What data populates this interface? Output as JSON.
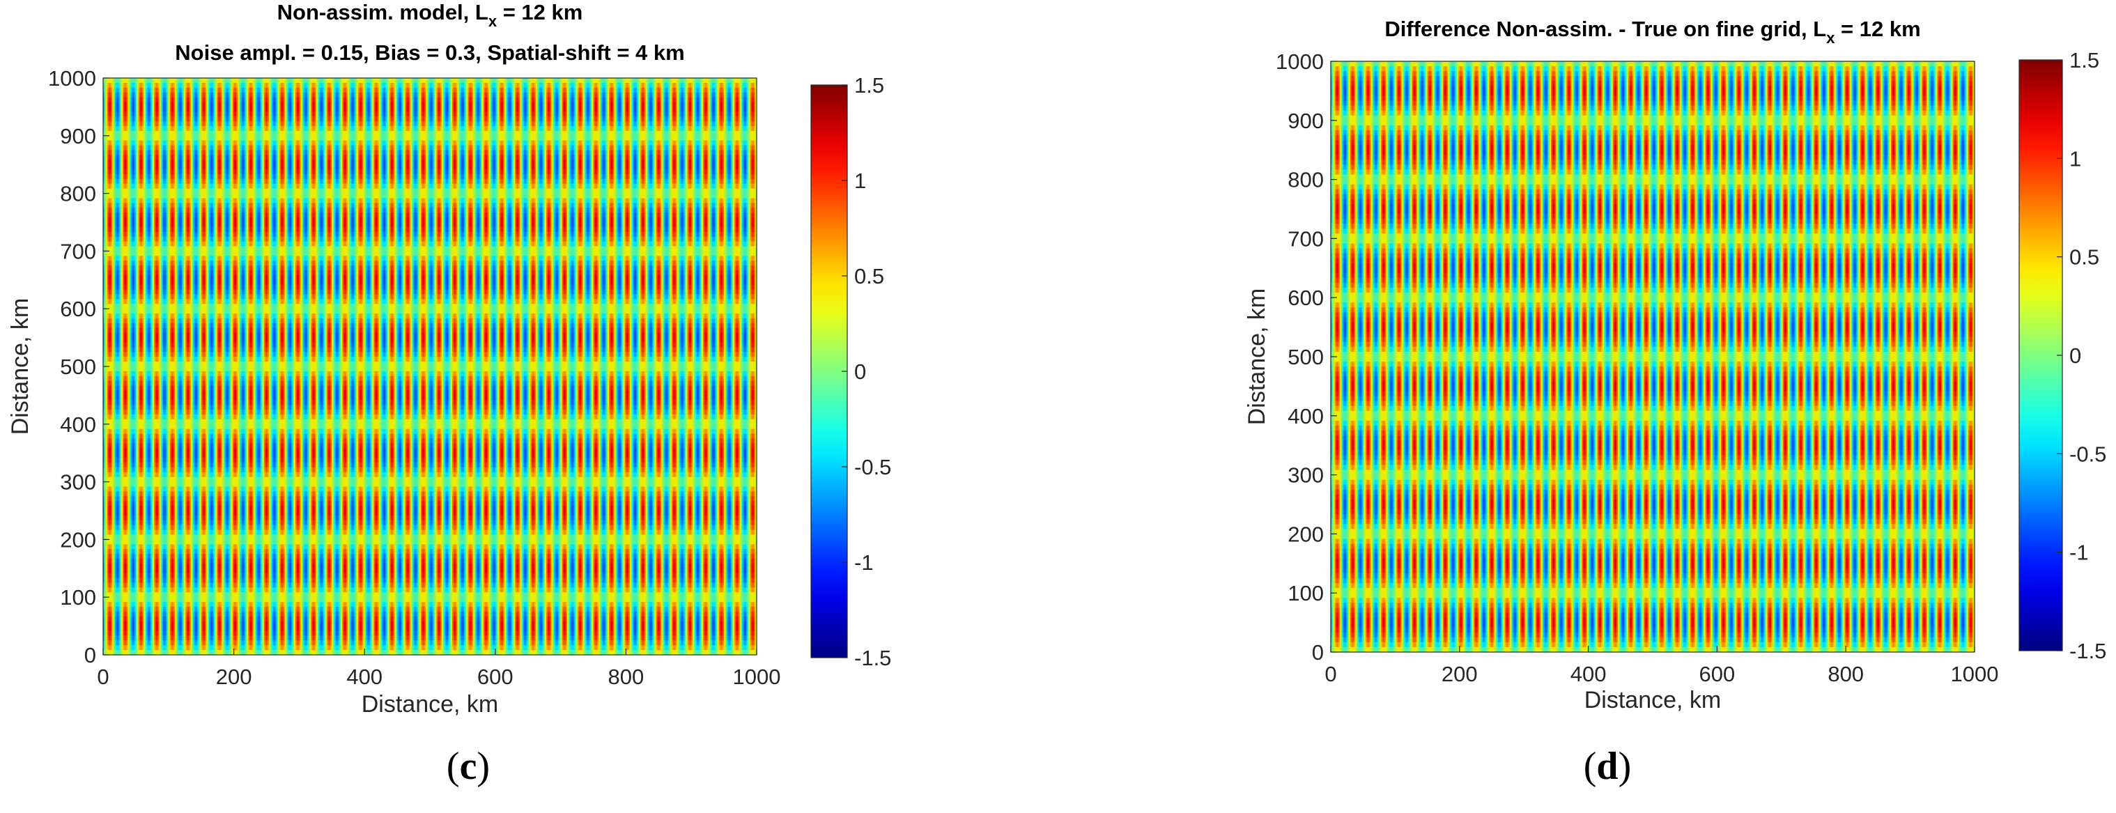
{
  "figure": {
    "labels": [
      {
        "open": "(",
        "letter": "c",
        "close": ")"
      },
      {
        "open": "(",
        "letter": "d",
        "close": ")"
      }
    ]
  },
  "chart_data": [
    {
      "type": "heatmap",
      "title_lines": [
        {
          "text": "Non-assim. model, L",
          "sub": "x",
          "after": " = 12 km"
        },
        {
          "text": "Noise ampl. = 0.15,  Bias = 0.3,  Spatial-shift = 4 km",
          "sub": "",
          "after": ""
        }
      ],
      "xlabel": "Distance, km",
      "ylabel": "Distance, km",
      "xlim": [
        0,
        1000
      ],
      "ylim": [
        0,
        1000
      ],
      "xticks": [
        0,
        200,
        400,
        600,
        800,
        1000
      ],
      "yticks": [
        0,
        100,
        200,
        300,
        400,
        500,
        600,
        700,
        800,
        900,
        1000
      ],
      "colorbar": {
        "min": -1.5,
        "max": 1.5,
        "ticks": [
          -1.5,
          -1,
          -0.5,
          0,
          0.5,
          1,
          1.5
        ],
        "colormap": "jet"
      },
      "field": {
        "stripe_period_x_km": 24,
        "band_period_y_km": 100,
        "amplitude": 1.0,
        "bias": 0.3,
        "noise_amplitude": 0.15,
        "spatial_shift_km": 4
      }
    },
    {
      "type": "heatmap",
      "title_lines": [
        {
          "text": "Difference Non-assim. - True on fine grid, L",
          "sub": "x",
          "after": " = 12 km"
        }
      ],
      "xlabel": "Distance, km",
      "ylabel": "Distance, km",
      "xlim": [
        0,
        1000
      ],
      "ylim": [
        0,
        1000
      ],
      "xticks": [
        0,
        200,
        400,
        600,
        800,
        1000
      ],
      "yticks": [
        0,
        100,
        200,
        300,
        400,
        500,
        600,
        700,
        800,
        900,
        1000
      ],
      "colorbar": {
        "min": -1.5,
        "max": 1.5,
        "ticks": [
          -1.5,
          -1,
          -0.5,
          0,
          0.5,
          1,
          1.5
        ],
        "colormap": "jet"
      },
      "field": {
        "stripe_period_x_km": 24,
        "band_period_y_km": 100,
        "amplitude": 1.0,
        "bias": 0.3,
        "noise_amplitude": 0.15,
        "spatial_shift_km": 4
      }
    }
  ]
}
